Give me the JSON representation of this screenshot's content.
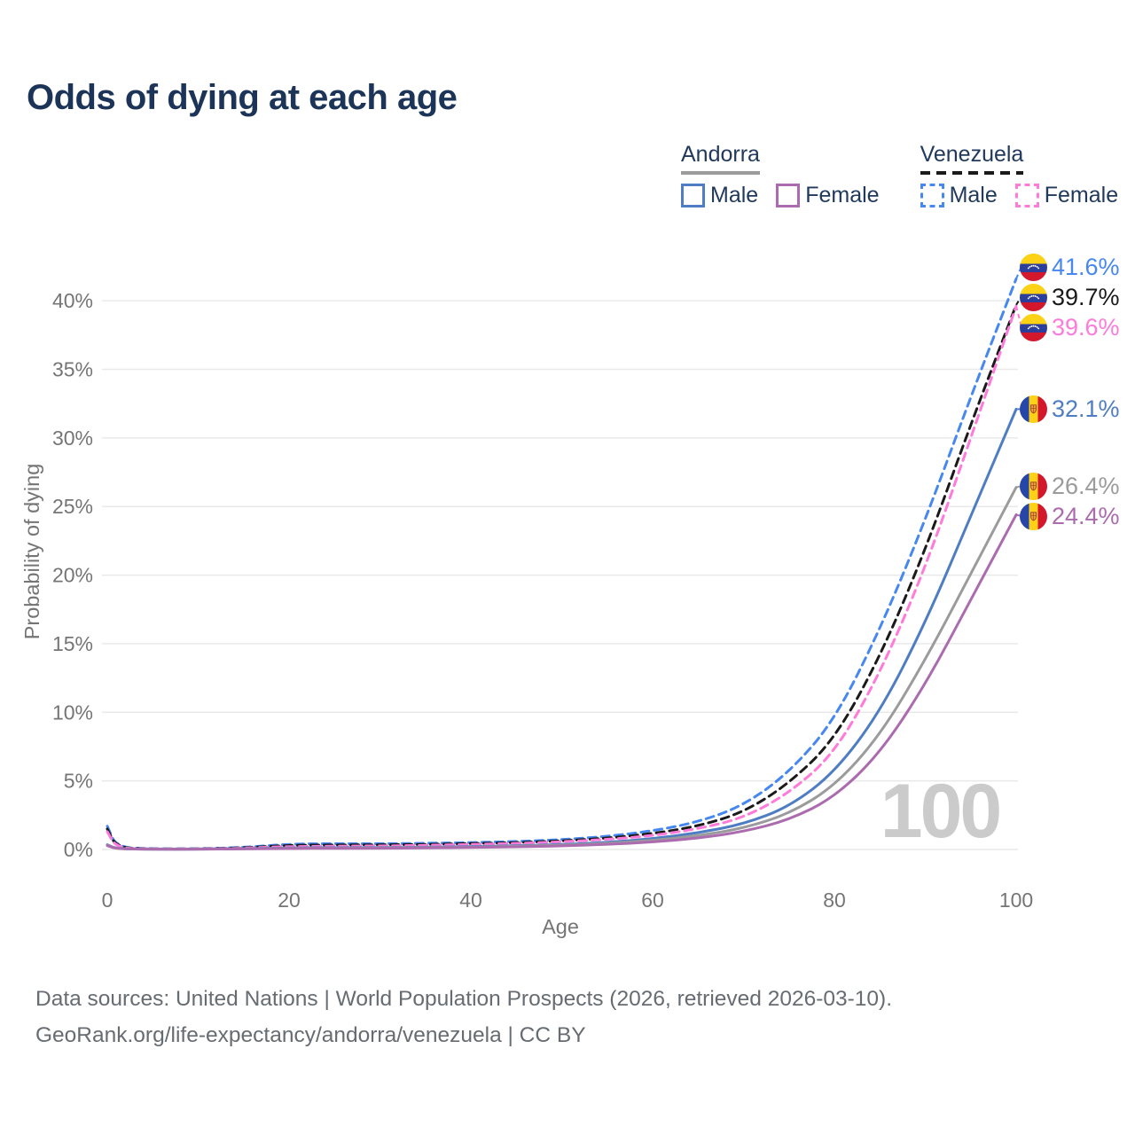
{
  "header": {
    "title": "Odds of dying at each age"
  },
  "legend": {
    "groups": [
      {
        "name": "Andorra",
        "line_style": "solid",
        "underline_color_key": "andorra_both",
        "items": [
          {
            "label": "Male",
            "color_key": "andorra_male"
          },
          {
            "label": "Female",
            "color_key": "andorra_female"
          }
        ]
      },
      {
        "name": "Venezuela",
        "line_style": "dashed",
        "underline_color_key": "venezuela_both",
        "items": [
          {
            "label": "Male",
            "color_key": "venezuela_male"
          },
          {
            "label": "Female",
            "color_key": "venezuela_female"
          }
        ]
      }
    ]
  },
  "colors": {
    "title": "#1b3458",
    "legend_text": "#20395c",
    "axis_text": "#757575",
    "gridline": "#e9e9e9",
    "watermark": "#cbcbcb",
    "footer_text": "#666c72",
    "andorra_male": "#4f7dc4",
    "andorra_female": "#ab6bae",
    "andorra_both": "#9b9b9b",
    "venezuela_male": "#4687f0",
    "venezuela_female": "#ff7ad9",
    "venezuela_both": "#1a1a1a"
  },
  "chart_data": {
    "type": "line",
    "title": "Odds of dying at each age",
    "xlabel": "Age",
    "ylabel": "Probability of dying",
    "xlim": [
      0,
      100
    ],
    "ylim": [
      0,
      43.5
    ],
    "x_ticks": [
      0,
      20,
      40,
      60,
      80,
      100
    ],
    "y_ticks": [
      "0%",
      "5%",
      "10%",
      "15%",
      "20%",
      "25%",
      "30%",
      "35%",
      "40%"
    ],
    "grid": "horizontal",
    "legend_position": "top-right",
    "watermark": "100",
    "x": [
      0,
      1,
      5,
      10,
      15,
      20,
      25,
      30,
      35,
      40,
      45,
      50,
      55,
      60,
      65,
      70,
      75,
      80,
      85,
      90,
      95,
      100
    ],
    "series": [
      {
        "id": "venezuela-male",
        "name": "Venezuela Male",
        "country": "Venezuela",
        "flag": "venezuela",
        "color_key": "venezuela_male",
        "dash": true,
        "values": [
          1.7,
          0.15,
          0.05,
          0.05,
          0.15,
          0.4,
          0.42,
          0.42,
          0.45,
          0.5,
          0.58,
          0.72,
          0.95,
          1.35,
          2.0,
          3.2,
          5.6,
          9.4,
          16.0,
          24.0,
          33.0,
          41.6
        ],
        "end_label": "41.6%"
      },
      {
        "id": "venezuela-both",
        "name": "Venezuela",
        "country": "Venezuela",
        "flag": "venezuela",
        "color_key": "venezuela_both",
        "dash": true,
        "values": [
          1.5,
          0.12,
          0.04,
          0.04,
          0.12,
          0.31,
          0.33,
          0.34,
          0.37,
          0.43,
          0.5,
          0.63,
          0.83,
          1.15,
          1.7,
          2.7,
          4.8,
          8.0,
          14.0,
          21.8,
          31.0,
          39.7
        ],
        "end_label": "39.7%"
      },
      {
        "id": "venezuela-female",
        "name": "Venezuela Female",
        "country": "Venezuela",
        "flag": "venezuela",
        "color_key": "venezuela_female",
        "dash": true,
        "values": [
          1.3,
          0.1,
          0.04,
          0.04,
          0.1,
          0.22,
          0.24,
          0.26,
          0.3,
          0.37,
          0.44,
          0.56,
          0.73,
          1.0,
          1.5,
          2.3,
          4.1,
          7.0,
          12.8,
          20.5,
          30.0,
          39.6
        ],
        "end_label": "39.6%"
      },
      {
        "id": "andorra-male",
        "name": "Andorra Male",
        "country": "Andorra",
        "flag": "andorra",
        "color_key": "andorra_male",
        "dash": false,
        "values": [
          0.35,
          0.05,
          0.02,
          0.02,
          0.06,
          0.12,
          0.13,
          0.14,
          0.17,
          0.21,
          0.27,
          0.36,
          0.52,
          0.78,
          1.2,
          1.85,
          3.1,
          5.6,
          10.0,
          16.5,
          24.3,
          32.1
        ],
        "end_label": "32.1%"
      },
      {
        "id": "andorra-both",
        "name": "Andorra",
        "country": "Andorra",
        "flag": "andorra",
        "color_key": "andorra_both",
        "dash": false,
        "values": [
          0.32,
          0.04,
          0.02,
          0.02,
          0.05,
          0.09,
          0.1,
          0.11,
          0.14,
          0.17,
          0.23,
          0.31,
          0.44,
          0.65,
          1.0,
          1.55,
          2.6,
          4.6,
          8.3,
          13.8,
          20.1,
          26.4
        ],
        "end_label": "26.4%"
      },
      {
        "id": "andorra-female",
        "name": "Andorra Female",
        "country": "Andorra",
        "flag": "andorra",
        "color_key": "andorra_female",
        "dash": false,
        "values": [
          0.28,
          0.04,
          0.02,
          0.02,
          0.04,
          0.07,
          0.08,
          0.09,
          0.11,
          0.15,
          0.19,
          0.26,
          0.37,
          0.54,
          0.82,
          1.3,
          2.15,
          3.8,
          7.0,
          12.0,
          18.2,
          24.4
        ],
        "end_label": "24.4%"
      }
    ]
  },
  "footer": {
    "line1": "Data sources: United Nations | World Population Prospects (2026, retrieved 2026-03-10).",
    "line2": "GeoRank.org/life-expectancy/andorra/venezuela | CC BY"
  }
}
